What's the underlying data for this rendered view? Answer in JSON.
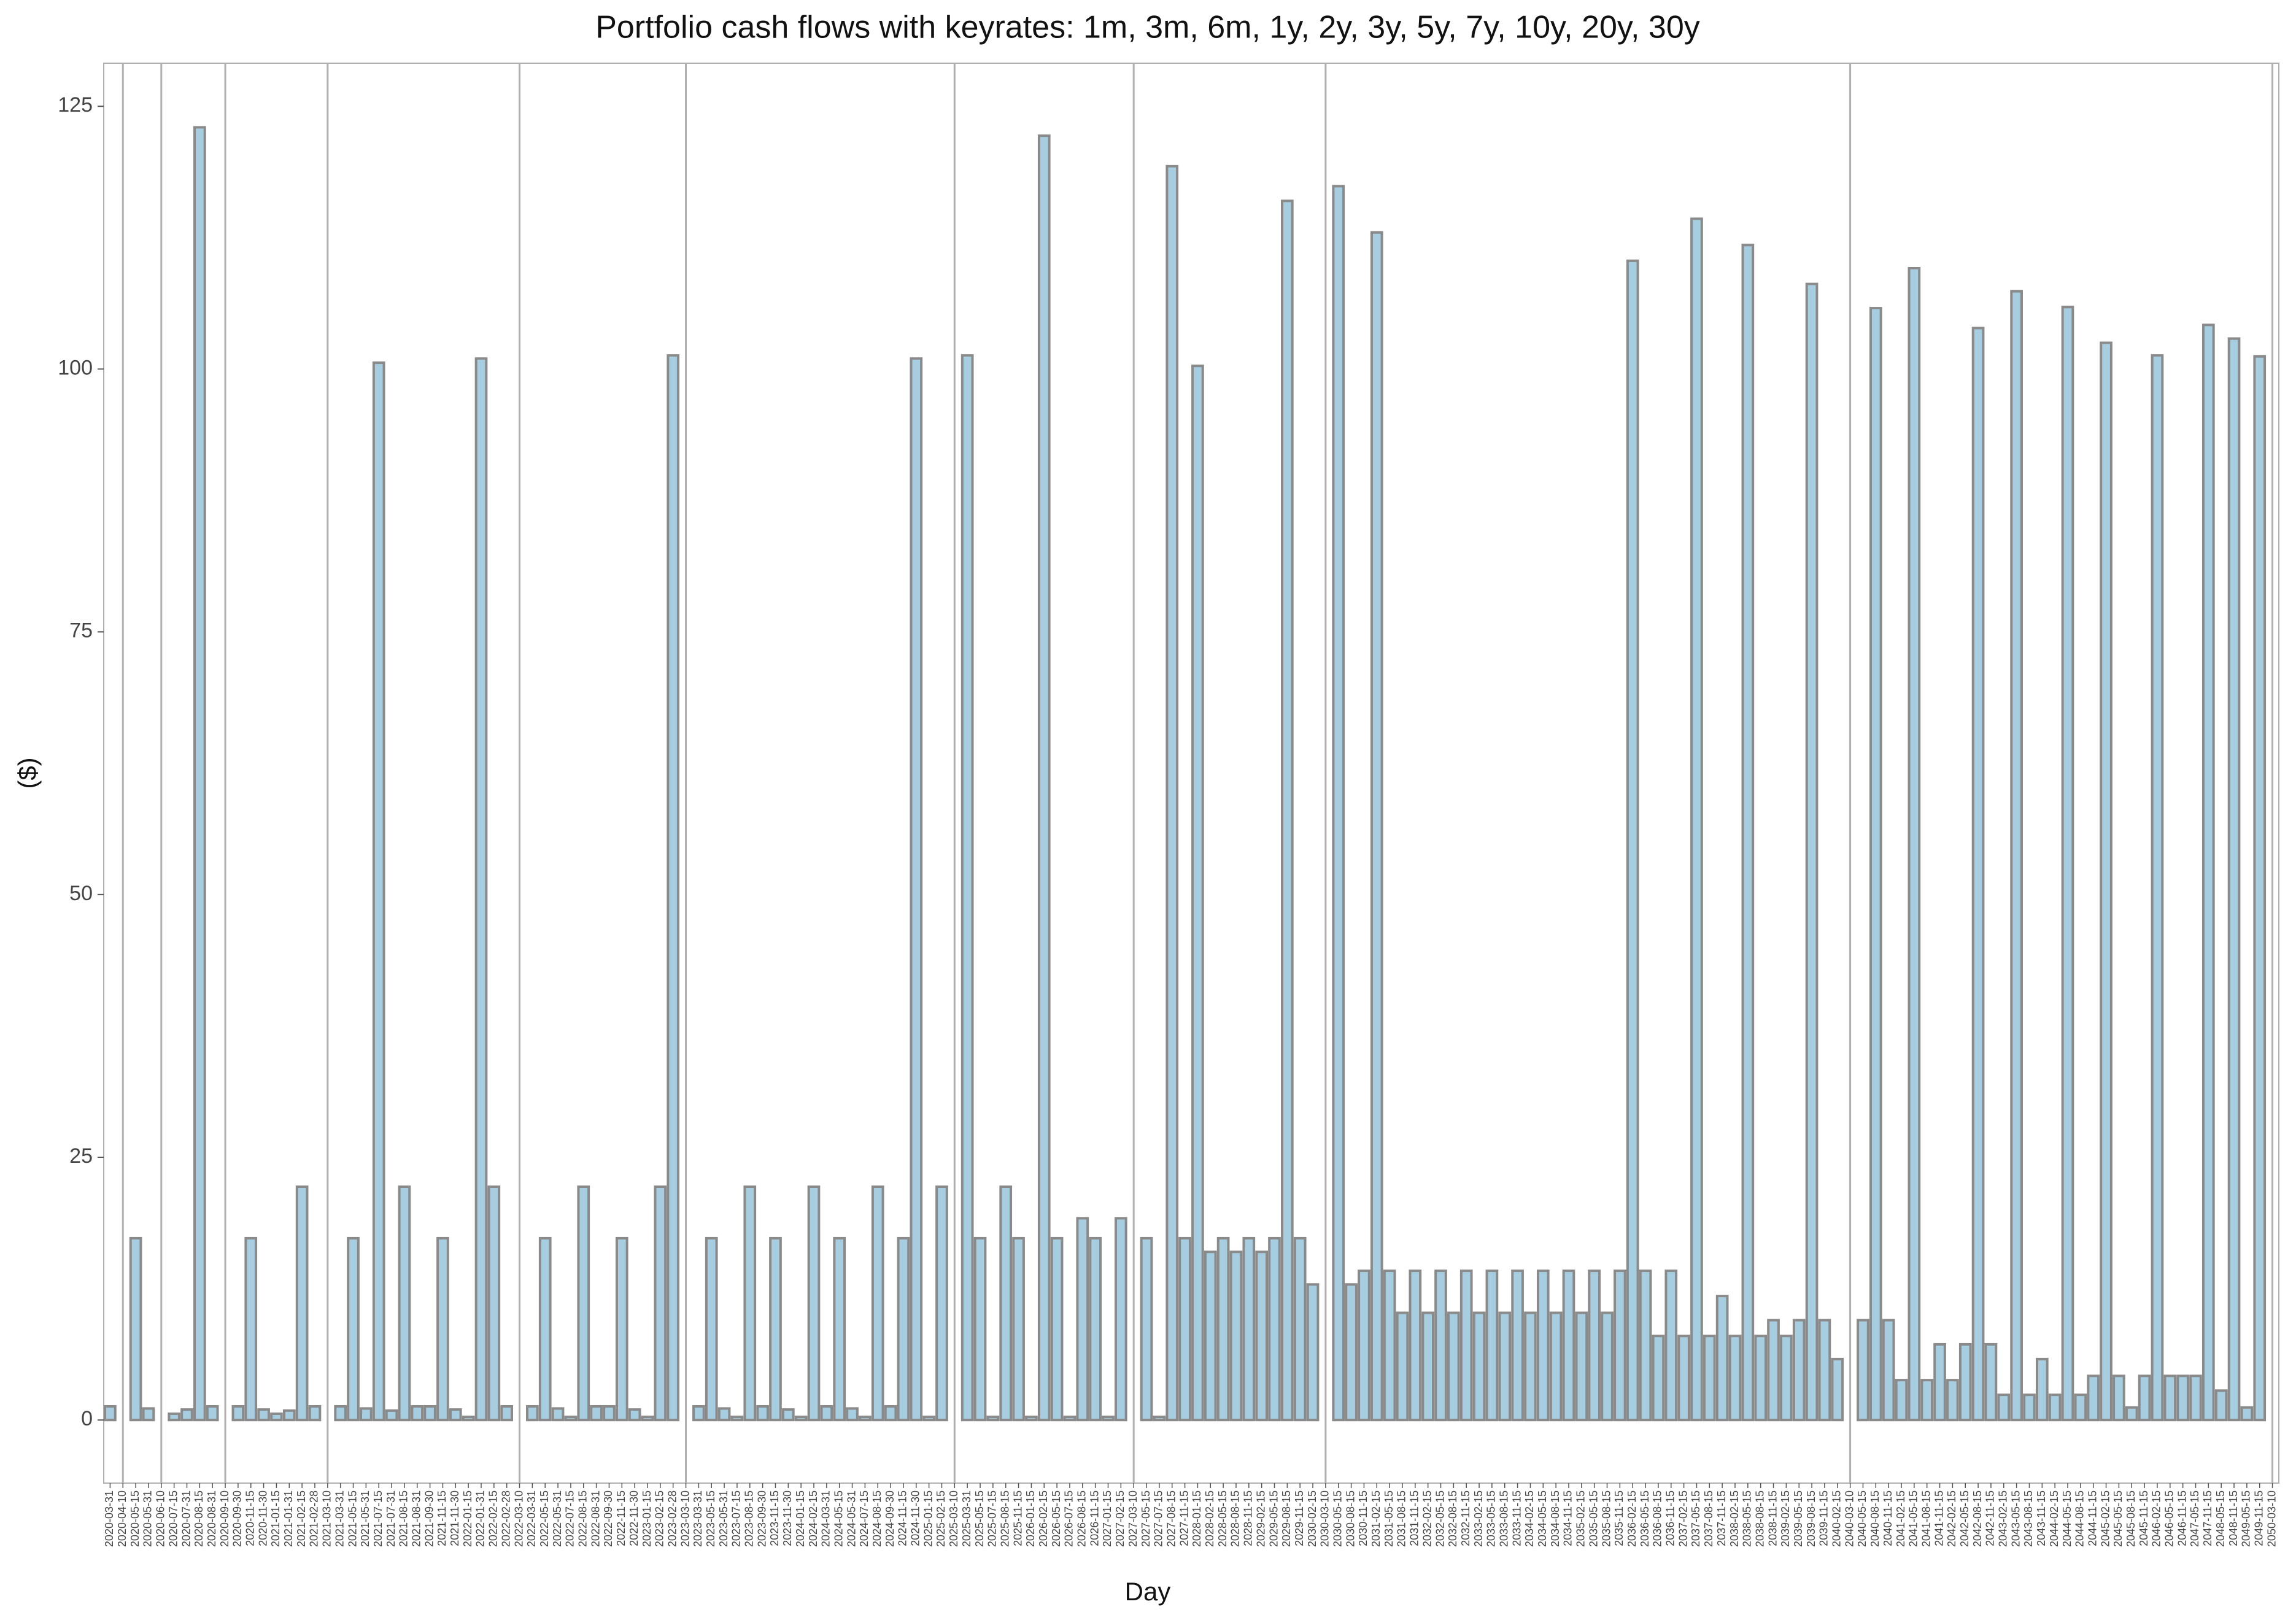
{
  "chart_data": {
    "type": "bar",
    "title": "Portfolio cash flows with keyrates: 1m, 3m, 6m, 1y, 2y, 3y, 5y, 7y, 10y, 20y, 30y",
    "x_label": "Day",
    "y_label": "($)",
    "color": "#a6cee0",
    "edge_color": "#8a8a8a",
    "vline_color": "#b0b0b0",
    "ylim": [
      -6,
      129.1
    ],
    "yticks": [
      0,
      25,
      50,
      75,
      100,
      125
    ],
    "vlines": [
      "2020-04-10",
      "2020-06-10",
      "2020-09-10",
      "2021-03-10",
      "2022-03-10",
      "2023-03-10",
      "2025-03-10",
      "2027-03-10",
      "2030-03-10",
      "2040-03-10",
      "2050-03-10"
    ],
    "categories": [
      "2020-03-31",
      "2020-04-10",
      "2020-05-15",
      "2020-05-31",
      "2020-06-10",
      "2020-07-15",
      "2020-07-31",
      "2020-08-15",
      "2020-08-31",
      "2020-09-10",
      "2020-09-30",
      "2020-11-15",
      "2020-11-30",
      "2021-01-15",
      "2021-01-31",
      "2021-02-15",
      "2021-02-28",
      "2021-03-10",
      "2021-03-31",
      "2021-05-15",
      "2021-05-31",
      "2021-07-15",
      "2021-07-31",
      "2021-08-15",
      "2021-08-31",
      "2021-09-30",
      "2021-11-15",
      "2021-11-30",
      "2022-01-15",
      "2022-01-31",
      "2022-02-15",
      "2022-02-28",
      "2022-03-10",
      "2022-03-31",
      "2022-05-15",
      "2022-05-31",
      "2022-07-15",
      "2022-08-15",
      "2022-08-31",
      "2022-09-30",
      "2022-11-15",
      "2022-11-30",
      "2023-01-15",
      "2023-02-15",
      "2023-02-28",
      "2023-03-10",
      "2023-03-31",
      "2023-05-15",
      "2023-05-31",
      "2023-07-15",
      "2023-08-15",
      "2023-09-30",
      "2023-11-15",
      "2023-11-30",
      "2024-01-15",
      "2024-02-15",
      "2024-03-31",
      "2024-05-15",
      "2024-05-31",
      "2024-07-15",
      "2024-08-15",
      "2024-09-30",
      "2024-11-15",
      "2024-11-30",
      "2025-01-15",
      "2025-02-15",
      "2025-03-10",
      "2025-03-31",
      "2025-05-15",
      "2025-07-15",
      "2025-08-15",
      "2025-11-15",
      "2026-01-15",
      "2026-02-15",
      "2026-05-15",
      "2026-07-15",
      "2026-08-15",
      "2026-11-15",
      "2027-01-15",
      "2027-02-15",
      "2027-03-10",
      "2027-05-15",
      "2027-07-15",
      "2027-08-15",
      "2027-11-15",
      "2028-01-15",
      "2028-02-15",
      "2028-05-15",
      "2028-08-15",
      "2028-11-15",
      "2029-02-15",
      "2029-05-15",
      "2029-08-15",
      "2029-11-15",
      "2030-02-15",
      "2030-03-10",
      "2030-05-15",
      "2030-08-15",
      "2030-11-15",
      "2031-02-15",
      "2031-05-15",
      "2031-08-15",
      "2031-11-15",
      "2032-02-15",
      "2032-05-15",
      "2032-08-15",
      "2032-11-15",
      "2033-02-15",
      "2033-05-15",
      "2033-08-15",
      "2033-11-15",
      "2034-02-15",
      "2034-05-15",
      "2034-08-15",
      "2034-11-15",
      "2035-02-15",
      "2035-05-15",
      "2035-08-15",
      "2035-11-15",
      "2036-02-15",
      "2036-05-15",
      "2036-08-15",
      "2036-11-15",
      "2037-02-15",
      "2037-05-15",
      "2037-08-15",
      "2037-11-15",
      "2038-02-15",
      "2038-05-15",
      "2038-08-15",
      "2038-11-15",
      "2039-02-15",
      "2039-05-15",
      "2039-08-15",
      "2039-11-15",
      "2040-02-15",
      "2040-03-10",
      "2040-05-15",
      "2040-08-15",
      "2040-11-15",
      "2041-02-15",
      "2041-05-15",
      "2041-08-15",
      "2041-11-15",
      "2042-02-15",
      "2042-05-15",
      "2042-08-15",
      "2042-11-15",
      "2043-02-15",
      "2043-05-15",
      "2043-08-15",
      "2043-11-15",
      "2044-02-15",
      "2044-05-15",
      "2044-08-15",
      "2044-11-15",
      "2045-02-15",
      "2045-05-15",
      "2045-08-15",
      "2045-11-15",
      "2046-02-15",
      "2046-05-15",
      "2046-11-15",
      "2047-05-15",
      "2047-11-15",
      "2048-05-15",
      "2048-11-15",
      "2049-05-15",
      "2049-11-15",
      "2050-03-10"
    ],
    "values": [
      1.3,
      null,
      17.3,
      1.1,
      null,
      0.6,
      1.0,
      123,
      1.3,
      null,
      1.3,
      17.3,
      1.0,
      0.6,
      0.9,
      22.2,
      1.3,
      null,
      1.3,
      17.3,
      1.1,
      100.6,
      0.9,
      22.2,
      1.3,
      1.3,
      17.3,
      1.0,
      0.3,
      101,
      22.2,
      1.3,
      null,
      1.3,
      17.3,
      1.1,
      0.3,
      22.2,
      1.3,
      1.3,
      17.3,
      1.0,
      0.3,
      22.2,
      101.3,
      null,
      1.3,
      17.3,
      1.1,
      0.3,
      22.2,
      1.3,
      17.3,
      1.0,
      0.3,
      22.2,
      1.3,
      17.3,
      1.1,
      0.3,
      22.2,
      1.3,
      17.3,
      101,
      0.3,
      22.2,
      null,
      101.3,
      17.3,
      0.3,
      22.2,
      17.3,
      0.3,
      122.2,
      17.3,
      0.3,
      19.2,
      17.3,
      0.3,
      19.2,
      null,
      17.3,
      0.3,
      119.3,
      17.3,
      100.3,
      16,
      17.3,
      16,
      17.3,
      16,
      17.3,
      116,
      17.3,
      12.9,
      null,
      117.4,
      12.9,
      14.2,
      113,
      14.2,
      10.2,
      14.2,
      10.2,
      14.2,
      10.2,
      14.2,
      10.2,
      14.2,
      10.2,
      14.2,
      10.2,
      14.2,
      10.2,
      14.2,
      10.2,
      14.2,
      10.2,
      14.2,
      110.3,
      14.2,
      8,
      14.2,
      8,
      114.3,
      8,
      11.8,
      8,
      111.8,
      8,
      9.5,
      8,
      9.5,
      108.1,
      9.5,
      5.8,
      null,
      9.5,
      105.8,
      9.5,
      3.8,
      109.6,
      3.8,
      7.2,
      3.8,
      7.2,
      103.9,
      7.2,
      2.4,
      107.4,
      2.4,
      5.8,
      2.4,
      105.9,
      2.4,
      4.2,
      102.5,
      4.2,
      1.2,
      4.2,
      101.3,
      4.2,
      4.2,
      4.2,
      104.2,
      2.8,
      102.9,
      1.2,
      101.2,
      null
    ]
  }
}
